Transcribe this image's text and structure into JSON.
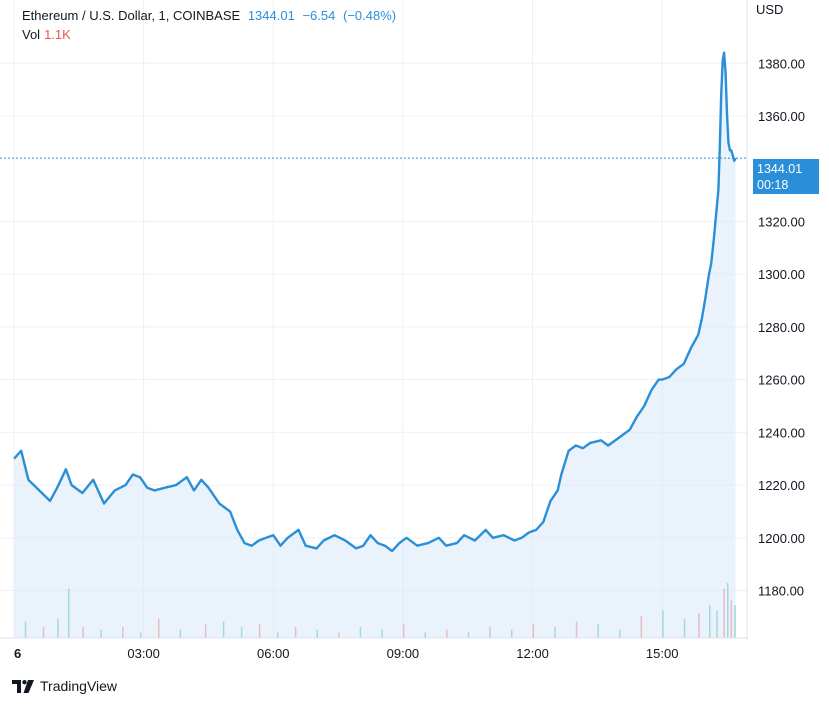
{
  "header": {
    "symbol": "Ethereum / U.S. Dollar, 1, COINBASE",
    "price": "1344.01",
    "change": "−6.54",
    "change_pct": "(−0.48%)",
    "vol_label": "Vol",
    "vol_value": "1.1K"
  },
  "axis": {
    "currency": "USD"
  },
  "last_price_badge": {
    "price": "1344.01",
    "countdown": "00:18"
  },
  "brand": {
    "name": "TradingView"
  },
  "colors": {
    "line": "#2a8fd8",
    "fill": "#d8eaf9",
    "grid": "#eef0f3",
    "vol_up": "#26a69a",
    "vol_down": "#ef5350"
  },
  "chart_data": {
    "type": "area",
    "x_label": "",
    "y_label": "",
    "y_ticks": [
      1180,
      1200,
      1220,
      1240,
      1260,
      1280,
      1300,
      1320,
      1360,
      1380
    ],
    "y_tick_labels": [
      "1180.00",
      "1200.00",
      "1220.00",
      "1240.00",
      "1260.00",
      "1280.00",
      "1300.00",
      "1320.00",
      "1360.00",
      "1380.00"
    ],
    "y_range": [
      1162,
      1404
    ],
    "x_range_minutes": [
      0,
      1015
    ],
    "x_ticks": [
      {
        "label": "6",
        "minute": 0
      },
      {
        "label": "03:00",
        "minute": 180
      },
      {
        "label": "06:00",
        "minute": 360
      },
      {
        "label": "09:00",
        "minute": 540
      },
      {
        "label": "12:00",
        "minute": 720
      },
      {
        "label": "15:00",
        "minute": 900
      }
    ],
    "current_price": 1344.01,
    "series": [
      {
        "x_minutes": [
          0,
          10,
          20,
          35,
          50,
          60,
          72,
          80,
          95,
          110,
          125,
          140,
          155,
          165,
          175,
          185,
          195,
          210,
          225,
          240,
          250,
          260,
          270,
          285,
          300,
          310,
          320,
          330,
          340,
          350,
          360,
          370,
          380,
          395,
          405,
          420,
          430,
          445,
          460,
          475,
          485,
          495,
          505,
          515,
          525,
          535,
          545,
          560,
          575,
          590,
          600,
          615,
          625,
          640,
          655,
          665,
          680,
          695,
          705,
          715,
          725,
          735,
          745,
          755,
          760,
          770,
          780,
          790,
          800,
          815,
          825,
          840,
          855,
          865,
          875,
          885,
          895,
          900,
          910,
          920,
          930,
          940,
          950,
          955,
          960,
          965,
          968,
          972,
          975,
          978,
          980,
          982,
          984,
          986,
          988,
          990,
          992,
          994,
          996,
          998,
          1000,
          1002
        ],
        "values": [
          1230,
          1233,
          1222,
          1218,
          1214,
          1219,
          1226,
          1220,
          1217,
          1222,
          1213,
          1218,
          1220,
          1224,
          1223,
          1219,
          1218,
          1219,
          1220,
          1223,
          1218,
          1222,
          1219,
          1213,
          1210,
          1203,
          1198,
          1197,
          1199,
          1200,
          1201,
          1197,
          1200,
          1203,
          1197,
          1196,
          1199,
          1201,
          1199,
          1196,
          1197,
          1201,
          1198,
          1197,
          1195,
          1198,
          1200,
          1197,
          1198,
          1200,
          1197,
          1198,
          1201,
          1199,
          1203,
          1200,
          1201,
          1199,
          1200,
          1202,
          1203,
          1206,
          1214,
          1218,
          1224,
          1233,
          1235,
          1234,
          1236,
          1237,
          1235,
          1238,
          1241,
          1246,
          1250,
          1256,
          1260,
          1260,
          1261,
          1264,
          1266,
          1272,
          1277,
          1283,
          1291,
          1300,
          1304,
          1314,
          1323,
          1332,
          1348,
          1368,
          1381,
          1384,
          1376,
          1361,
          1350,
          1347,
          1347,
          1345,
          1343,
          1344
        ]
      }
    ],
    "volume_series": {
      "note_scale": "relative height 0-1",
      "x_minutes": [
        15,
        40,
        60,
        75,
        95,
        120,
        150,
        175,
        200,
        230,
        265,
        290,
        315,
        340,
        365,
        390,
        420,
        450,
        480,
        510,
        540,
        570,
        600,
        630,
        660,
        690,
        720,
        750,
        780,
        810,
        840,
        870,
        900,
        930,
        950,
        965,
        975,
        985,
        990,
        995,
        1000
      ],
      "values": [
        0.3,
        0.2,
        0.35,
        0.9,
        0.2,
        0.15,
        0.2,
        0.1,
        0.35,
        0.15,
        0.25,
        0.3,
        0.2,
        0.25,
        0.1,
        0.2,
        0.15,
        0.1,
        0.2,
        0.15,
        0.25,
        0.1,
        0.15,
        0.1,
        0.2,
        0.15,
        0.25,
        0.2,
        0.3,
        0.25,
        0.15,
        0.4,
        0.5,
        0.35,
        0.45,
        0.6,
        0.5,
        0.9,
        1.0,
        0.7,
        0.6
      ],
      "up": [
        true,
        false,
        true,
        true,
        false,
        true,
        false,
        true,
        false,
        true,
        false,
        true,
        true,
        false,
        true,
        false,
        true,
        false,
        true,
        true,
        false,
        true,
        false,
        true,
        false,
        true,
        false,
        true,
        false,
        true,
        true,
        false,
        true,
        true,
        false,
        true,
        true,
        false,
        true,
        false,
        true
      ]
    }
  }
}
